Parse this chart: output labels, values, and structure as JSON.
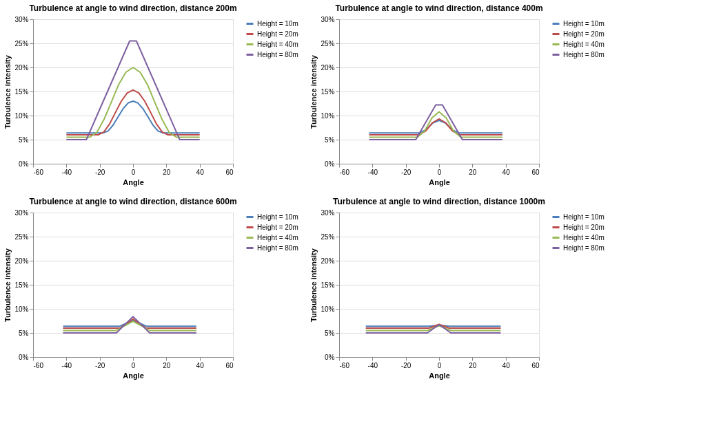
{
  "chart_data": [
    {
      "type": "line",
      "title": "Turbulence at angle to wind direction, distance 200m",
      "xlabel": "Angle",
      "ylabel": "Turbulence intensity",
      "xlim": [
        -60,
        60
      ],
      "xticks": [
        -60,
        -40,
        -20,
        0,
        20,
        40,
        60
      ],
      "ylim": [
        0,
        30
      ],
      "yticks": [
        {
          "value": 0,
          "label": "0%"
        },
        {
          "value": 5,
          "label": "5%"
        },
        {
          "value": 10,
          "label": "10%"
        },
        {
          "value": 15,
          "label": "15%"
        },
        {
          "value": 20,
          "label": "20%"
        },
        {
          "value": 25,
          "label": "25%"
        },
        {
          "value": 30,
          "label": "30%"
        }
      ],
      "grid": "y",
      "legend": "right",
      "line_style": "solid",
      "series": [
        {
          "name": "Height = 10m",
          "color": "#4a7ebb",
          "x": [
            -40,
            -18,
            -15,
            -12,
            -9,
            -6,
            -3,
            0,
            3,
            6,
            9,
            12,
            15,
            18,
            40
          ],
          "values": [
            6.4,
            6.4,
            6.8,
            8.0,
            9.7,
            11.4,
            12.6,
            13,
            12.6,
            11.4,
            9.7,
            8.0,
            6.8,
            6.4,
            6.4
          ]
        },
        {
          "name": "Height = 20m",
          "color": "#be4b48",
          "x": [
            -40,
            -21,
            -17.5,
            -14,
            -10.5,
            -7,
            -3.5,
            0,
            3.5,
            7,
            10.5,
            14,
            17.5,
            21,
            40
          ],
          "values": [
            6,
            6,
            6.6,
            8.3,
            10.7,
            13.0,
            14.7,
            15.3,
            14.7,
            13.0,
            10.7,
            8.3,
            6.6,
            6,
            6
          ]
        },
        {
          "name": "Height = 40m",
          "color": "#98b954",
          "x": [
            -40,
            -26,
            -21.7,
            -17.3,
            -13,
            -8.7,
            -4.3,
            0,
            4.3,
            8.7,
            13,
            17.3,
            21.7,
            26,
            40
          ],
          "values": [
            5.5,
            5.5,
            6.5,
            9.3,
            12.8,
            16.4,
            19.0,
            20,
            19.0,
            16.4,
            12.8,
            9.3,
            6.5,
            5.5,
            5.5
          ]
        },
        {
          "name": "Height = 80m",
          "color": "#7d60a0",
          "x": [
            -40,
            -28,
            -2,
            2,
            28,
            40
          ],
          "values": [
            5,
            5,
            25.5,
            25.5,
            5,
            5
          ]
        }
      ]
    },
    {
      "type": "line",
      "title": "Turbulence at angle to wind direction, distance 400m",
      "xlabel": "Angle",
      "ylabel": "Turbulence intensity",
      "xlim": [
        -60,
        60
      ],
      "xticks": [
        -60,
        -40,
        -20,
        0,
        20,
        40,
        60
      ],
      "ylim": [
        0,
        30
      ],
      "yticks": [
        {
          "value": 0,
          "label": "0%"
        },
        {
          "value": 5,
          "label": "5%"
        },
        {
          "value": 10,
          "label": "10%"
        },
        {
          "value": 15,
          "label": "15%"
        },
        {
          "value": 20,
          "label": "20%"
        },
        {
          "value": 25,
          "label": "25%"
        },
        {
          "value": 30,
          "label": "30%"
        }
      ],
      "grid": "y",
      "legend": "right",
      "line_style": "solid",
      "series": [
        {
          "name": "Height = 10m",
          "color": "#4a7ebb",
          "x": [
            -42,
            -12,
            -8,
            -4,
            0,
            4,
            8,
            12,
            38
          ],
          "values": [
            6.4,
            6.4,
            7.0,
            8.4,
            9,
            8.4,
            7.0,
            6.4,
            6.4
          ]
        },
        {
          "name": "Height = 20m",
          "color": "#be4b48",
          "x": [
            -42,
            -12,
            -8,
            -4,
            0,
            4,
            8,
            12,
            38
          ],
          "values": [
            6,
            6,
            6.8,
            8.5,
            9.3,
            8.5,
            6.8,
            6,
            6
          ]
        },
        {
          "name": "Height = 40m",
          "color": "#98b954",
          "x": [
            -42,
            -13,
            -8.7,
            -4.3,
            0,
            4.3,
            8.7,
            13,
            38
          ],
          "values": [
            5.5,
            5.5,
            6.8,
            9.5,
            10.8,
            9.5,
            6.8,
            5.5,
            5.5
          ]
        },
        {
          "name": "Height = 80m",
          "color": "#7d60a0",
          "x": [
            -42,
            -14,
            -2,
            2,
            14,
            38
          ],
          "values": [
            5,
            5,
            12.2,
            12.2,
            5,
            5
          ]
        }
      ]
    },
    {
      "type": "line",
      "title": "Turbulence at angle to wind direction, distance 600m",
      "xlabel": "Angle",
      "ylabel": "Turbulence intensity",
      "xlim": [
        -60,
        60
      ],
      "xticks": [
        -60,
        -40,
        -20,
        0,
        20,
        40,
        60
      ],
      "ylim": [
        0,
        30
      ],
      "yticks": [
        {
          "value": 0,
          "label": "0%"
        },
        {
          "value": 5,
          "label": "5%"
        },
        {
          "value": 10,
          "label": "10%"
        },
        {
          "value": 15,
          "label": "15%"
        },
        {
          "value": 20,
          "label": "20%"
        },
        {
          "value": 25,
          "label": "25%"
        },
        {
          "value": 30,
          "label": "30%"
        }
      ],
      "grid": "y",
      "legend": "right",
      "line_style": "solid",
      "series": [
        {
          "name": "Height = 10m",
          "color": "#4a7ebb",
          "x": [
            -42,
            -8,
            -4,
            0,
            4,
            8,
            38
          ],
          "values": [
            6.4,
            6.4,
            7.0,
            7.6,
            7.0,
            6.4,
            6.4
          ]
        },
        {
          "name": "Height = 20m",
          "color": "#be4b48",
          "x": [
            -42,
            -8,
            -4,
            0,
            4,
            8,
            38
          ],
          "values": [
            6,
            6,
            6.9,
            7.9,
            6.9,
            6,
            6
          ]
        },
        {
          "name": "Height = 40m",
          "color": "#98b954",
          "x": [
            -42,
            -10,
            -5,
            0,
            5,
            10,
            38
          ],
          "values": [
            5.5,
            5.5,
            6.5,
            7.4,
            6.5,
            5.5,
            5.5
          ]
        },
        {
          "name": "Height = 80m",
          "color": "#7d60a0",
          "x": [
            -42,
            -10,
            -5,
            0,
            5,
            10,
            38
          ],
          "values": [
            5,
            5,
            6.7,
            8.4,
            6.7,
            5,
            5
          ]
        }
      ]
    },
    {
      "type": "line",
      "title": "Turbulence at angle to wind direction, distance 1000m",
      "xlabel": "Angle",
      "ylabel": "Turbulence intensity",
      "xlim": [
        -60,
        60
      ],
      "xticks": [
        -60,
        -40,
        -20,
        0,
        20,
        40,
        60
      ],
      "ylim": [
        0,
        30
      ],
      "yticks": [
        {
          "value": 0,
          "label": "0%"
        },
        {
          "value": 5,
          "label": "5%"
        },
        {
          "value": 10,
          "label": "10%"
        },
        {
          "value": 15,
          "label": "15%"
        },
        {
          "value": 20,
          "label": "20%"
        },
        {
          "value": 25,
          "label": "25%"
        },
        {
          "value": 30,
          "label": "30%"
        }
      ],
      "grid": "y",
      "legend": "right",
      "line_style": "solid",
      "series": [
        {
          "name": "Height = 10m",
          "color": "#4a7ebb",
          "x": [
            -44,
            -6,
            -3,
            0,
            3,
            6,
            37
          ],
          "values": [
            6.4,
            6.4,
            6.5,
            6.6,
            6.5,
            6.4,
            6.4
          ]
        },
        {
          "name": "Height = 20m",
          "color": "#be4b48",
          "x": [
            -44,
            -6,
            -3,
            0,
            3,
            6,
            37
          ],
          "values": [
            6,
            6,
            6.4,
            6.8,
            6.4,
            6,
            6
          ]
        },
        {
          "name": "Height = 40m",
          "color": "#98b954",
          "x": [
            -44,
            -7,
            -3.5,
            0,
            3.5,
            7,
            37
          ],
          "values": [
            5.5,
            5.5,
            6.0,
            6.5,
            6.0,
            5.5,
            5.5
          ]
        },
        {
          "name": "Height = 80m",
          "color": "#7d60a0",
          "x": [
            -44,
            -7,
            -3.5,
            0,
            3.5,
            7,
            37
          ],
          "values": [
            5,
            5,
            5.9,
            6.7,
            5.9,
            5,
            5
          ]
        }
      ]
    }
  ]
}
